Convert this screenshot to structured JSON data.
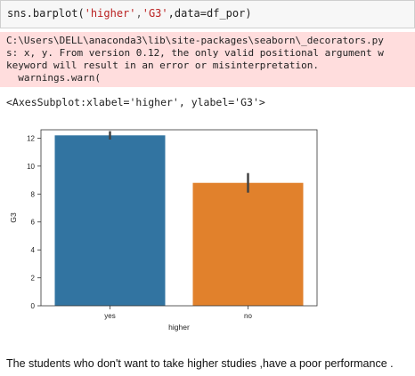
{
  "code": {
    "fn": "sns.barplot(",
    "arg1": "'higher'",
    "comma1": ",",
    "arg2": "'G3'",
    "comma2": ",data=df_por)"
  },
  "stderr": {
    "lines": [
      "C:\\Users\\DELL\\anaconda3\\lib\\site-packages\\seaborn\\_decorators.py",
      "s: x, y. From version 0.12, the only valid positional argument w",
      "keyword will result in an error or misinterpretation.",
      "  warnings.warn("
    ]
  },
  "result_text": "<AxesSubplot:xlabel='higher', ylabel='G3'>",
  "chart_data": {
    "type": "bar",
    "categories": [
      "yes",
      "no"
    ],
    "values": [
      12.2,
      8.8
    ],
    "error_low": [
      11.9,
      8.1
    ],
    "error_high": [
      12.5,
      9.5
    ],
    "colors": [
      "#3274a1",
      "#e1812c"
    ],
    "xlabel": "higher",
    "ylabel": "G3",
    "ylim": [
      0,
      12.6
    ],
    "yticks": [
      0,
      2,
      4,
      6,
      8,
      10,
      12
    ],
    "grid": false
  },
  "caption": "The students who don't want to take higher studies ,have a poor performance ."
}
